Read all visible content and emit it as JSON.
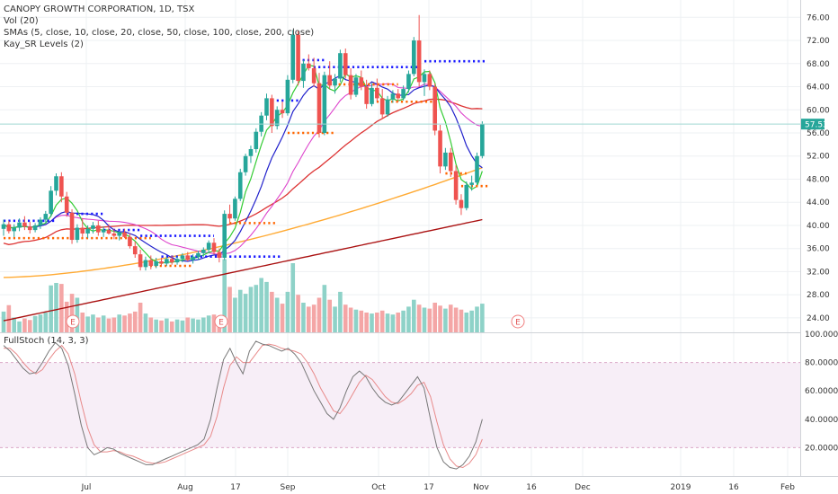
{
  "legend": {
    "title": "CANOPY GROWTH CORPORATION, 1D, TSX",
    "vol": "Vol (20)",
    "smas": "SMAs (5, close, 10, close, 20, close, 50, close, 100, close, 200, close)",
    "kay": "Kay_SR Levels (2)"
  },
  "stoch_legend": "FullStoch (14, 3, 3)",
  "chart_data": [
    {
      "type": "candlestick",
      "title": "CANOPY GROWTH CORPORATION, 1D, TSX",
      "price_axis_ticks": [
        "24.00",
        "28.00",
        "32.00",
        "36.00",
        "40.00",
        "44.00",
        "48.00",
        "52.00",
        "56.00",
        "60.00",
        "64.00",
        "68.00",
        "72.00",
        "76.00"
      ],
      "ylim": [
        21.5,
        79
      ],
      "last_price": "57.53",
      "x_ticks": [
        "Jul",
        "Aug",
        "17",
        "Sep",
        "Oct",
        "17",
        "Nov",
        "16",
        "Dec",
        "2019",
        "16",
        "Feb"
      ],
      "candles": [
        {
          "o": 39.4,
          "h": 41.0,
          "l": 38.2,
          "c": 40.2
        },
        {
          "o": 40.2,
          "h": 40.8,
          "l": 38.6,
          "c": 39.0
        },
        {
          "o": 39.0,
          "h": 40.2,
          "l": 38.0,
          "c": 39.6
        },
        {
          "o": 39.6,
          "h": 41.2,
          "l": 39.0,
          "c": 40.5
        },
        {
          "o": 40.5,
          "h": 41.6,
          "l": 39.2,
          "c": 39.8
        },
        {
          "o": 39.8,
          "h": 40.6,
          "l": 38.6,
          "c": 39.2
        },
        {
          "o": 39.2,
          "h": 40.4,
          "l": 38.8,
          "c": 40.0
        },
        {
          "o": 40.0,
          "h": 41.4,
          "l": 39.4,
          "c": 41.0
        },
        {
          "o": 41.0,
          "h": 42.5,
          "l": 40.4,
          "c": 42.0
        },
        {
          "o": 42.0,
          "h": 46.8,
          "l": 41.5,
          "c": 46.0
        },
        {
          "o": 46.0,
          "h": 49.0,
          "l": 45.2,
          "c": 48.5
        },
        {
          "o": 48.5,
          "h": 49.2,
          "l": 44.0,
          "c": 45.0
        },
        {
          "o": 45.0,
          "h": 45.8,
          "l": 41.5,
          "c": 42.2
        },
        {
          "o": 42.2,
          "h": 42.8,
          "l": 36.8,
          "c": 37.5
        },
        {
          "o": 37.5,
          "h": 40.2,
          "l": 37.0,
          "c": 39.6
        },
        {
          "o": 39.6,
          "h": 41.2,
          "l": 38.0,
          "c": 38.6
        },
        {
          "o": 38.6,
          "h": 40.0,
          "l": 37.8,
          "c": 39.4
        },
        {
          "o": 39.4,
          "h": 40.6,
          "l": 38.6,
          "c": 40.0
        },
        {
          "o": 40.0,
          "h": 40.8,
          "l": 38.2,
          "c": 38.8
        },
        {
          "o": 38.8,
          "h": 39.8,
          "l": 38.0,
          "c": 39.2
        },
        {
          "o": 39.2,
          "h": 40.2,
          "l": 38.4,
          "c": 38.6
        },
        {
          "o": 38.6,
          "h": 39.4,
          "l": 37.6,
          "c": 38.2
        },
        {
          "o": 38.2,
          "h": 39.0,
          "l": 37.4,
          "c": 38.8
        },
        {
          "o": 38.8,
          "h": 39.4,
          "l": 37.8,
          "c": 38.0
        },
        {
          "o": 38.0,
          "h": 38.6,
          "l": 36.0,
          "c": 36.4
        },
        {
          "o": 36.4,
          "h": 37.2,
          "l": 34.4,
          "c": 35.0
        },
        {
          "o": 35.0,
          "h": 35.8,
          "l": 32.2,
          "c": 32.8
        },
        {
          "o": 32.8,
          "h": 34.6,
          "l": 32.2,
          "c": 34.0
        },
        {
          "o": 34.0,
          "h": 34.8,
          "l": 32.4,
          "c": 33.0
        },
        {
          "o": 33.0,
          "h": 34.4,
          "l": 32.6,
          "c": 33.8
        },
        {
          "o": 33.8,
          "h": 34.4,
          "l": 33.0,
          "c": 33.4
        },
        {
          "o": 33.4,
          "h": 34.6,
          "l": 33.0,
          "c": 34.2
        },
        {
          "o": 34.2,
          "h": 34.8,
          "l": 33.2,
          "c": 33.6
        },
        {
          "o": 33.6,
          "h": 34.6,
          "l": 33.2,
          "c": 34.2
        },
        {
          "o": 34.2,
          "h": 35.2,
          "l": 33.6,
          "c": 34.8
        },
        {
          "o": 34.8,
          "h": 35.4,
          "l": 33.8,
          "c": 34.0
        },
        {
          "o": 34.0,
          "h": 35.0,
          "l": 33.4,
          "c": 34.6
        },
        {
          "o": 34.6,
          "h": 35.6,
          "l": 34.0,
          "c": 35.2
        },
        {
          "o": 35.2,
          "h": 36.2,
          "l": 34.6,
          "c": 35.8
        },
        {
          "o": 35.8,
          "h": 37.4,
          "l": 35.2,
          "c": 37.0
        },
        {
          "o": 37.0,
          "h": 37.8,
          "l": 35.0,
          "c": 35.4
        },
        {
          "o": 35.4,
          "h": 36.0,
          "l": 33.6,
          "c": 34.4
        },
        {
          "o": 34.4,
          "h": 42.6,
          "l": 34.0,
          "c": 42.0
        },
        {
          "o": 42.0,
          "h": 43.6,
          "l": 40.6,
          "c": 41.2
        },
        {
          "o": 41.2,
          "h": 45.0,
          "l": 40.8,
          "c": 44.6
        },
        {
          "o": 44.6,
          "h": 49.8,
          "l": 44.2,
          "c": 49.2
        },
        {
          "o": 49.2,
          "h": 52.4,
          "l": 48.6,
          "c": 52.0
        },
        {
          "o": 52.0,
          "h": 53.8,
          "l": 50.8,
          "c": 53.2
        },
        {
          "o": 53.2,
          "h": 56.8,
          "l": 52.6,
          "c": 56.2
        },
        {
          "o": 56.2,
          "h": 59.6,
          "l": 55.4,
          "c": 59.0
        },
        {
          "o": 59.0,
          "h": 62.8,
          "l": 58.2,
          "c": 62.0
        },
        {
          "o": 62.0,
          "h": 62.6,
          "l": 56.0,
          "c": 57.2
        },
        {
          "o": 57.2,
          "h": 60.6,
          "l": 56.6,
          "c": 60.0
        },
        {
          "o": 60.0,
          "h": 61.4,
          "l": 58.6,
          "c": 59.4
        },
        {
          "o": 59.4,
          "h": 66.0,
          "l": 59.0,
          "c": 65.2
        },
        {
          "o": 65.2,
          "h": 73.8,
          "l": 64.6,
          "c": 73.0
        },
        {
          "o": 73.0,
          "h": 73.6,
          "l": 64.2,
          "c": 65.0
        },
        {
          "o": 65.0,
          "h": 68.6,
          "l": 63.8,
          "c": 68.0
        },
        {
          "o": 68.0,
          "h": 69.6,
          "l": 66.8,
          "c": 67.2
        },
        {
          "o": 67.2,
          "h": 69.0,
          "l": 64.0,
          "c": 64.6
        },
        {
          "o": 64.6,
          "h": 66.4,
          "l": 55.2,
          "c": 56.0
        },
        {
          "o": 56.0,
          "h": 66.6,
          "l": 55.6,
          "c": 66.0
        },
        {
          "o": 66.0,
          "h": 68.4,
          "l": 63.6,
          "c": 64.2
        },
        {
          "o": 64.2,
          "h": 66.2,
          "l": 62.8,
          "c": 65.4
        },
        {
          "o": 65.4,
          "h": 70.4,
          "l": 64.8,
          "c": 69.8
        },
        {
          "o": 69.8,
          "h": 70.6,
          "l": 65.4,
          "c": 66.0
        },
        {
          "o": 66.0,
          "h": 67.2,
          "l": 61.8,
          "c": 62.6
        },
        {
          "o": 62.6,
          "h": 66.2,
          "l": 62.2,
          "c": 65.6
        },
        {
          "o": 65.6,
          "h": 66.8,
          "l": 63.4,
          "c": 64.0
        },
        {
          "o": 64.0,
          "h": 65.2,
          "l": 60.2,
          "c": 61.0
        },
        {
          "o": 61.0,
          "h": 64.6,
          "l": 60.6,
          "c": 63.8
        },
        {
          "o": 63.8,
          "h": 65.4,
          "l": 61.4,
          "c": 62.0
        },
        {
          "o": 62.0,
          "h": 63.6,
          "l": 58.4,
          "c": 59.2
        },
        {
          "o": 59.2,
          "h": 62.4,
          "l": 58.8,
          "c": 61.8
        },
        {
          "o": 61.8,
          "h": 63.4,
          "l": 61.2,
          "c": 62.8
        },
        {
          "o": 62.8,
          "h": 63.6,
          "l": 61.4,
          "c": 62.0
        },
        {
          "o": 62.0,
          "h": 64.2,
          "l": 61.6,
          "c": 63.6
        },
        {
          "o": 63.6,
          "h": 66.8,
          "l": 63.0,
          "c": 66.2
        },
        {
          "o": 66.2,
          "h": 72.6,
          "l": 65.8,
          "c": 72.0
        },
        {
          "o": 72.0,
          "h": 76.4,
          "l": 64.0,
          "c": 64.8
        },
        {
          "o": 64.8,
          "h": 67.0,
          "l": 62.4,
          "c": 66.2
        },
        {
          "o": 66.2,
          "h": 66.8,
          "l": 63.4,
          "c": 64.0
        },
        {
          "o": 64.0,
          "h": 64.6,
          "l": 55.6,
          "c": 56.4
        },
        {
          "o": 56.4,
          "h": 57.4,
          "l": 49.0,
          "c": 50.2
        },
        {
          "o": 50.2,
          "h": 53.4,
          "l": 49.6,
          "c": 52.6
        },
        {
          "o": 52.6,
          "h": 53.4,
          "l": 48.4,
          "c": 49.4
        },
        {
          "o": 49.4,
          "h": 50.4,
          "l": 43.6,
          "c": 44.4
        },
        {
          "o": 44.4,
          "h": 45.4,
          "l": 41.8,
          "c": 43.0
        },
        {
          "o": 43.0,
          "h": 47.6,
          "l": 42.6,
          "c": 47.0
        },
        {
          "o": 47.0,
          "h": 48.6,
          "l": 46.0,
          "c": 47.4
        },
        {
          "o": 47.4,
          "h": 52.6,
          "l": 47.0,
          "c": 52.0
        },
        {
          "o": 52.0,
          "h": 58.0,
          "l": 51.6,
          "c": 57.53
        }
      ],
      "volumes": [
        0.42,
        0.55,
        0.3,
        0.22,
        0.28,
        0.25,
        0.33,
        0.36,
        0.4,
        0.95,
        1.0,
        0.98,
        0.62,
        0.78,
        0.7,
        0.4,
        0.32,
        0.36,
        0.3,
        0.34,
        0.28,
        0.3,
        0.36,
        0.34,
        0.38,
        0.42,
        0.6,
        0.38,
        0.3,
        0.26,
        0.24,
        0.28,
        0.22,
        0.26,
        0.24,
        0.3,
        0.28,
        0.26,
        0.3,
        0.34,
        0.36,
        0.3,
        1.48,
        0.92,
        0.7,
        0.86,
        0.78,
        0.92,
        0.96,
        1.1,
        1.02,
        0.82,
        0.7,
        0.58,
        0.82,
        1.4,
        0.76,
        0.6,
        0.52,
        0.56,
        0.7,
        0.96,
        0.66,
        0.52,
        0.82,
        0.56,
        0.5,
        0.46,
        0.44,
        0.4,
        0.38,
        0.4,
        0.44,
        0.38,
        0.36,
        0.4,
        0.44,
        0.52,
        0.66,
        0.56,
        0.5,
        0.48,
        0.6,
        0.54,
        0.48,
        0.56,
        0.5,
        0.46,
        0.4,
        0.44,
        0.52,
        0.58
      ],
      "sr_levels": [
        {
          "value": 40.8,
          "color": "#1a1aff",
          "from": 0,
          "to": 10
        },
        {
          "value": 37.8,
          "color": "#ff6600",
          "from": 0,
          "to": 12
        },
        {
          "value": 42.0,
          "color": "#1a1aff",
          "from": 12,
          "to": 19
        },
        {
          "value": 39.2,
          "color": "#1a1aff",
          "from": 19,
          "to": 26
        },
        {
          "value": 37.8,
          "color": "#ff6600",
          "from": 12,
          "to": 28
        },
        {
          "value": 38.2,
          "color": "#1a1aff",
          "from": 26,
          "to": 40
        },
        {
          "value": 33.0,
          "color": "#ff6600",
          "from": 26,
          "to": 36
        },
        {
          "value": 34.6,
          "color": "#1a1aff",
          "from": 30,
          "to": 53
        },
        {
          "value": 40.4,
          "color": "#ff6600",
          "from": 42,
          "to": 52
        },
        {
          "value": 61.6,
          "color": "#1a1aff",
          "from": 51,
          "to": 56
        },
        {
          "value": 56.0,
          "color": "#ff6600",
          "from": 54,
          "to": 63
        },
        {
          "value": 68.6,
          "color": "#1a1aff",
          "from": 55,
          "to": 61
        },
        {
          "value": 67.4,
          "color": "#1a1aff",
          "from": 58,
          "to": 79
        },
        {
          "value": 64.4,
          "color": "#ff6600",
          "from": 60,
          "to": 75
        },
        {
          "value": 61.4,
          "color": "#ff6600",
          "from": 70,
          "to": 82
        },
        {
          "value": 68.4,
          "color": "#1a1aff",
          "from": 80,
          "to": 92
        },
        {
          "value": 49.0,
          "color": "#ff6600",
          "from": 84,
          "to": 88
        },
        {
          "value": 46.8,
          "color": "#ff6600",
          "from": 87,
          "to": 92
        }
      ],
      "sma_colors": {
        "sma5": "#33cc33",
        "sma10": "#2222cc",
        "sma20": "#dd44cc",
        "sma50": "#dd3333",
        "sma100": "#ffaa33",
        "sma200": "#aa1111"
      },
      "earnings_markers": [
        "E",
        "E",
        "E"
      ]
    },
    {
      "type": "line",
      "title": "FullStoch (14, 3, 3)",
      "yticks": [
        "20.0000",
        "40.0000",
        "60.0000",
        "80.0000",
        "100.0000"
      ],
      "ylim": [
        0,
        100
      ],
      "bands": [
        20,
        80
      ],
      "k": [
        92,
        88,
        82,
        76,
        72,
        73,
        80,
        88,
        94,
        90,
        78,
        58,
        36,
        20,
        15,
        17,
        20,
        19,
        16,
        14,
        12,
        10,
        8,
        8,
        10,
        12,
        14,
        16,
        18,
        20,
        22,
        26,
        40,
        62,
        82,
        90,
        80,
        72,
        88,
        95,
        93,
        92,
        90,
        88,
        90,
        86,
        80,
        70,
        60,
        52,
        44,
        40,
        48,
        60,
        70,
        74,
        70,
        62,
        56,
        52,
        50,
        52,
        58,
        64,
        70,
        62,
        40,
        20,
        10,
        6,
        5,
        8,
        14,
        24,
        40
      ],
      "d": [
        90,
        90,
        86,
        80,
        75,
        72,
        75,
        82,
        88,
        92,
        86,
        72,
        52,
        34,
        22,
        17,
        17,
        18,
        17,
        15,
        14,
        12,
        10,
        9,
        9,
        10,
        12,
        14,
        16,
        18,
        20,
        22,
        28,
        42,
        62,
        78,
        84,
        80,
        80,
        86,
        92,
        93,
        92,
        90,
        89,
        88,
        86,
        80,
        72,
        62,
        54,
        46,
        44,
        50,
        58,
        66,
        71,
        68,
        62,
        56,
        52,
        51,
        54,
        58,
        64,
        66,
        56,
        38,
        22,
        12,
        7,
        6,
        9,
        15,
        26
      ]
    }
  ]
}
